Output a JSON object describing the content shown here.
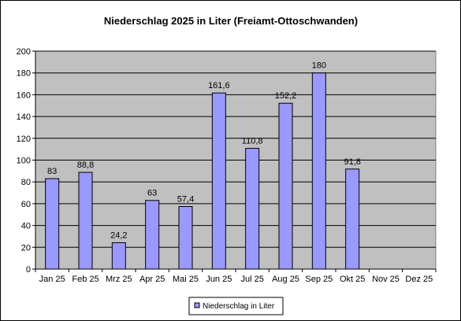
{
  "chart_data": {
    "type": "bar",
    "title": "Niederschlag 2025 in Liter (Freiamt-Ottoschwanden)",
    "categories": [
      "Jan 25",
      "Feb 25",
      "Mrz 25",
      "Apr 25",
      "Mai 25",
      "Jun 25",
      "Jul 25",
      "Aug 25",
      "Sep 25",
      "Okt 25",
      "Nov 25",
      "Dez 25"
    ],
    "series": [
      {
        "name": "Niederschlag in Liter",
        "values": [
          83,
          88.8,
          24.2,
          63,
          57.4,
          161.6,
          110.8,
          152.2,
          180,
          91.8,
          null,
          null
        ],
        "value_labels": [
          "83",
          "88,8",
          "24,2",
          "63",
          "57,4",
          "161,6",
          "110,8",
          "152,2",
          "180",
          "91,8",
          "",
          ""
        ]
      }
    ],
    "ylim": [
      0,
      200
    ],
    "yticks": [
      0,
      20,
      40,
      60,
      80,
      100,
      120,
      140,
      160,
      180,
      200
    ],
    "grid": true,
    "legend_position": "bottom",
    "colors": {
      "bar_fill": "#9999ff",
      "bar_stroke": "#000000",
      "plot_background": "#c0c0c0",
      "gridline": "#000000"
    }
  }
}
